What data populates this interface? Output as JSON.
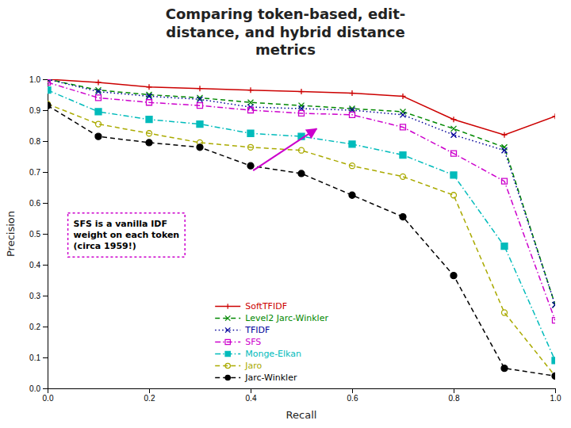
{
  "chart_data": {
    "type": "line",
    "title": "Comparing token-based, edit-\ndistance, and hybrid distance\nmetrics",
    "x_label": "Recall",
    "y_label": "Precision",
    "xlim": [
      0,
      1.0
    ],
    "ylim": [
      0,
      1.0
    ],
    "xticks": [
      {
        "value": 0,
        "label": "0.0"
      },
      0.2,
      0.4,
      0.6,
      0.8,
      {
        "value": 1.0,
        "label": "1.0"
      }
    ],
    "yticks": [
      {
        "value": 0,
        "label": "0.0"
      },
      0.1,
      0.2,
      0.3,
      0.4,
      0.5,
      0.6,
      0.7,
      0.8,
      0.9,
      {
        "value": 1.0,
        "label": "1.0"
      }
    ],
    "grid": false,
    "legend": "bottom",
    "x": [
      0.0,
      0.1,
      0.2,
      0.3,
      0.4,
      0.5,
      0.6,
      0.7,
      0.8,
      0.9,
      1.0
    ],
    "series": [
      {
        "name": "SoftTFIDF",
        "color": "#CC0000",
        "line_style": "solid",
        "marker": "plus",
        "values": [
          1.0,
          0.99,
          0.975,
          0.97,
          0.965,
          0.96,
          0.955,
          0.945,
          0.87,
          0.82,
          0.88
        ]
      },
      {
        "name": "Level2 Jarc-Winkler",
        "color": "#008800",
        "line_style": "dashed",
        "marker": "x",
        "values": [
          1.0,
          0.965,
          0.95,
          0.94,
          0.925,
          0.915,
          0.905,
          0.895,
          0.84,
          0.78,
          0.27
        ]
      },
      {
        "name": "TFIDF",
        "color": "#000099",
        "line_style": "dotted",
        "marker": "x",
        "values": [
          1.0,
          0.96,
          0.945,
          0.935,
          0.91,
          0.905,
          0.9,
          0.885,
          0.82,
          0.77,
          0.27
        ]
      },
      {
        "name": "SFS",
        "color": "#CC00CC",
        "line_style": "dashdot",
        "marker": "square",
        "values": [
          0.99,
          0.94,
          0.925,
          0.915,
          0.9,
          0.89,
          0.885,
          0.845,
          0.76,
          0.67,
          0.22
        ]
      },
      {
        "name": "Monge-Elkan",
        "color": "#00BBBB",
        "line_style": "dashdot",
        "marker": "filled-square",
        "values": [
          0.965,
          0.895,
          0.87,
          0.855,
          0.825,
          0.815,
          0.79,
          0.755,
          0.69,
          0.46,
          0.09
        ]
      },
      {
        "name": "Jaro",
        "color": "#AAAA00",
        "line_style": "dashed",
        "marker": "circle",
        "values": [
          0.92,
          0.855,
          0.825,
          0.795,
          0.78,
          0.77,
          0.72,
          0.685,
          0.625,
          0.245,
          0.04
        ]
      },
      {
        "name": "Jarc-Winkler",
        "color": "#000000",
        "line_style": "dashed",
        "marker": "filled-circle",
        "values": [
          0.915,
          0.815,
          0.795,
          0.78,
          0.72,
          0.695,
          0.625,
          0.555,
          0.365,
          0.065,
          0.04
        ]
      }
    ],
    "annotations": [
      {
        "text": "SFS is a vanilla IDF\nweight on each token\n(circa 1959!)",
        "color": "#CC00CC",
        "arrow_from": [
          0.405,
          0.705
        ],
        "arrow_to": [
          0.53,
          0.84
        ]
      }
    ]
  }
}
